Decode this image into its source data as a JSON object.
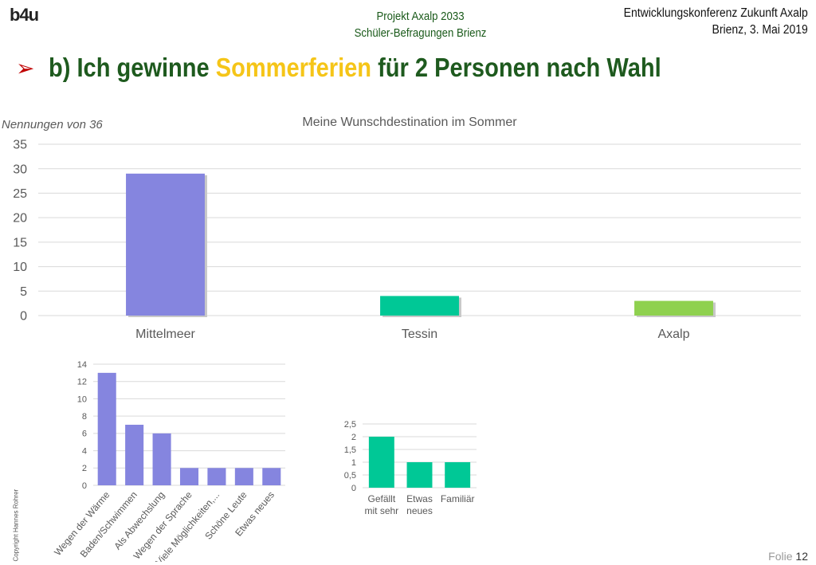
{
  "header": {
    "logo": "b4u",
    "center_line1": "Projekt Axalp 2033",
    "center_line2": "Schüler-Befragungen Brienz",
    "right_line1": "Entwicklungskonferenz Zukunft Axalp",
    "right_line2": "Brienz, 3. Mai 2019"
  },
  "slide_title": {
    "part1": "b) Ich gewinne ",
    "highlight": "Sommerferien",
    "part2": " für 2 Personen nach Wahl"
  },
  "copyright": "Copyright Hannes Rohrer",
  "footer": {
    "folie_label": "Folie",
    "folie_number": "12"
  },
  "colors": {
    "purple": "#8585df",
    "teal": "#00c896",
    "green": "#8fd14f",
    "title_green": "#1e5a1e",
    "highlight": "#f5c518"
  },
  "chart_data": [
    {
      "type": "bar",
      "title": "Meine Wunschdestination im Sommer",
      "ylabel": "Nennungen von 36",
      "categories": [
        "Mittelmeer",
        "Tessin",
        "Axalp"
      ],
      "values": [
        29,
        4,
        3
      ],
      "bar_colors": [
        "#8585df",
        "#00c896",
        "#8fd14f"
      ],
      "ylim": [
        0,
        35
      ],
      "yticks": [
        0,
        5,
        10,
        15,
        20,
        25,
        30,
        35
      ],
      "grid": true
    },
    {
      "type": "bar",
      "categories": [
        "Wegen der Wärme",
        "Baden/Schwimmen",
        "Als Abwechslung",
        "Wegen der Sprache",
        "Viele Möglichkeiten,...",
        "Schöne Leute",
        "Etwas neues"
      ],
      "values": [
        13,
        7,
        6,
        2,
        2,
        2,
        2
      ],
      "bar_color": "#8585df",
      "ylim": [
        0,
        14
      ],
      "yticks": [
        0,
        2,
        4,
        6,
        8,
        10,
        12,
        14
      ],
      "grid": true
    },
    {
      "type": "bar",
      "categories": [
        "Gefällt mit sehr",
        "Etwas neues",
        "Familiär"
      ],
      "values": [
        2,
        1,
        1
      ],
      "bar_color": "#00c896",
      "ylim": [
        0,
        2.5
      ],
      "yticks": [
        "0",
        "0,5",
        "1",
        "1,5",
        "2",
        "2,5"
      ],
      "grid": true
    }
  ]
}
